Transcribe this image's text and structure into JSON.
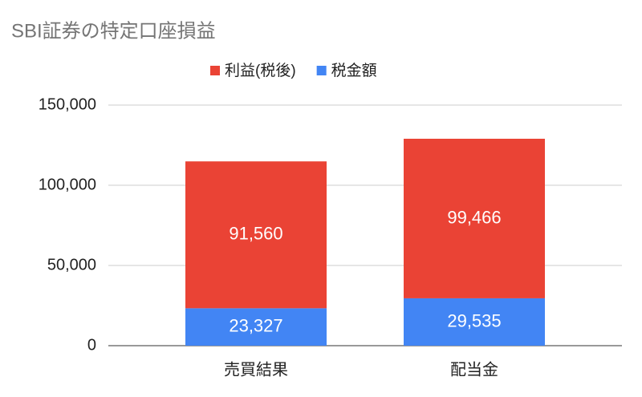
{
  "chart_data": {
    "type": "stacked_bar",
    "title": "SBI証券の特定口座損益",
    "categories": [
      "売買結果",
      "配当金"
    ],
    "series": [
      {
        "name": "利益(税後)",
        "color": "#ea4335",
        "values": [
          91560,
          99466
        ],
        "value_labels": [
          "91,560",
          "99,466"
        ]
      },
      {
        "name": "税金額",
        "color": "#4285f4",
        "values": [
          23327,
          29535
        ],
        "value_labels": [
          "23,327",
          "29,535"
        ]
      }
    ],
    "ylim": [
      0,
      150000
    ],
    "yticks": [
      0,
      {
        "value": 50000,
        "label": "50,000"
      },
      {
        "value": 100000,
        "label": "100,000"
      },
      {
        "value": 150000,
        "label": "150,000"
      }
    ],
    "grid": true,
    "legend": "top"
  }
}
